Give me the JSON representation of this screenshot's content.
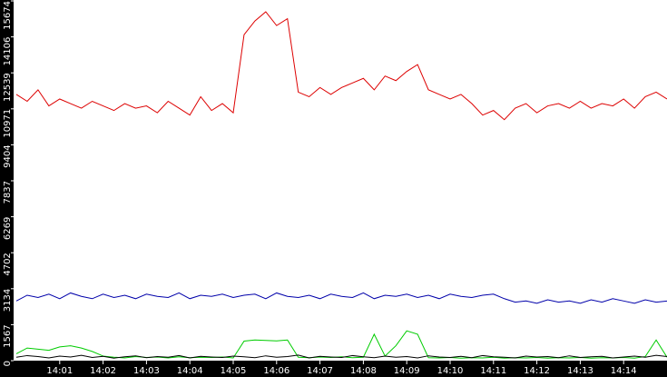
{
  "chart_data": {
    "type": "line",
    "x": [
      0,
      0.25,
      0.5,
      0.75,
      1,
      1.25,
      1.5,
      1.75,
      2,
      2.25,
      2.5,
      2.75,
      3,
      3.25,
      3.5,
      3.75,
      4,
      4.25,
      4.5,
      4.75,
      5,
      5.25,
      5.5,
      5.75,
      6,
      6.25,
      6.5,
      6.75,
      7,
      7.25,
      7.5,
      7.75,
      8,
      8.25,
      8.5,
      8.75,
      9,
      9.25,
      9.5,
      9.75,
      10,
      10.25,
      10.5,
      10.75,
      11,
      11.25,
      11.5,
      11.75,
      12,
      12.25,
      12.5,
      12.75,
      13,
      13.25,
      13.5,
      13.75,
      14,
      14.25,
      14.5,
      14.75,
      15
    ],
    "series": [
      {
        "color": "#dd0000",
        "values": [
          11600,
          11300,
          11800,
          11100,
          11400,
          11200,
          11000,
          11300,
          11100,
          10900,
          11200,
          11000,
          11100,
          10800,
          11300,
          11000,
          10700,
          11500,
          10900,
          11200,
          10800,
          14200,
          14800,
          15200,
          14600,
          14900,
          11700,
          11500,
          11900,
          11600,
          11900,
          12100,
          12300,
          11800,
          12400,
          12200,
          12600,
          12900,
          11800,
          11600,
          11400,
          11600,
          11200,
          10700,
          10900,
          10500,
          11000,
          11200,
          10800,
          11100,
          11200,
          11000,
          11300,
          11000,
          11200,
          11100,
          11400,
          11000,
          11500,
          11700,
          11400
        ]
      },
      {
        "color": "#0000aa",
        "values": [
          2600,
          2850,
          2750,
          2900,
          2700,
          2950,
          2800,
          2700,
          2900,
          2750,
          2850,
          2700,
          2900,
          2800,
          2750,
          2950,
          2700,
          2850,
          2800,
          2900,
          2750,
          2850,
          2900,
          2700,
          2950,
          2800,
          2750,
          2850,
          2700,
          2900,
          2800,
          2750,
          2950,
          2700,
          2850,
          2800,
          2900,
          2750,
          2850,
          2700,
          2900,
          2800,
          2750,
          2850,
          2900,
          2700,
          2550,
          2600,
          2500,
          2650,
          2550,
          2600,
          2500,
          2650,
          2550,
          2700,
          2600,
          2500,
          2650,
          2550,
          2600
        ]
      },
      {
        "color": "#00cc00",
        "values": [
          300,
          550,
          500,
          450,
          600,
          650,
          550,
          400,
          200,
          150,
          120,
          180,
          140,
          160,
          120,
          170,
          130,
          150,
          140,
          160,
          120,
          850,
          900,
          880,
          860,
          900,
          150,
          130,
          160,
          140,
          170,
          130,
          150,
          1150,
          200,
          650,
          1300,
          1150,
          130,
          120,
          140,
          110,
          130,
          120,
          150,
          110,
          130,
          120,
          140,
          110,
          130,
          120,
          140,
          110,
          130,
          120,
          140,
          110,
          180,
          900,
          150
        ]
      },
      {
        "color": "#000000",
        "values": [
          150,
          220,
          180,
          120,
          200,
          160,
          230,
          140,
          190,
          110,
          170,
          210,
          130,
          180,
          150,
          220,
          120,
          190,
          160,
          140,
          200,
          170,
          130,
          210,
          150,
          180,
          240,
          120,
          190,
          160,
          140,
          220,
          170,
          130,
          200,
          150,
          180,
          120,
          210,
          160,
          140,
          190,
          130,
          220,
          170,
          150,
          120,
          200,
          160,
          180,
          130,
          210,
          140,
          170,
          190,
          120,
          160,
          200,
          150,
          230,
          180
        ]
      }
    ],
    "xlim": [
      0,
      15
    ],
    "xticks": [
      {
        "value": 1,
        "label": "14:01"
      },
      {
        "value": 2,
        "label": "14:02"
      },
      {
        "value": 3,
        "label": "14:03"
      },
      {
        "value": 4,
        "label": "14:04"
      },
      {
        "value": 5,
        "label": "14:05"
      },
      {
        "value": 6,
        "label": "14:06"
      },
      {
        "value": 7,
        "label": "14:07"
      },
      {
        "value": 8,
        "label": "14:08"
      },
      {
        "value": 9,
        "label": "14:09"
      },
      {
        "value": 10,
        "label": "14:10"
      },
      {
        "value": 11,
        "label": "14:11"
      },
      {
        "value": 12,
        "label": "14:12"
      },
      {
        "value": 13,
        "label": "14:13"
      },
      {
        "value": 14,
        "label": "14:14"
      }
    ],
    "ylim": [
      0,
      15674
    ],
    "yticks": [
      0,
      1567,
      3134,
      4702,
      6269,
      7837,
      9404,
      10971,
      12539,
      14106,
      15674
    ]
  }
}
